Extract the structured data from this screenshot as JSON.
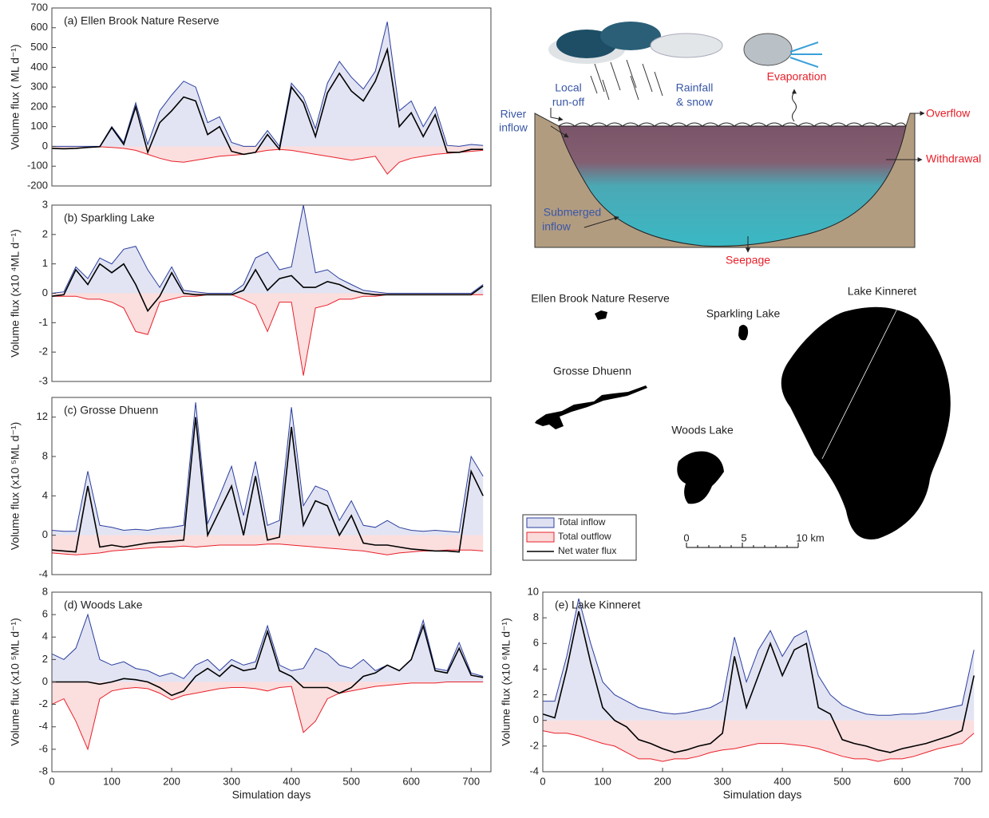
{
  "chart_data": [
    {
      "type": "line",
      "title": "(a) Ellen Brook Nature Reserve",
      "y_label": "Volume flux ( ML d⁻¹)",
      "x": [
        0,
        20,
        40,
        60,
        80,
        100,
        120,
        140,
        160,
        180,
        200,
        220,
        240,
        260,
        280,
        300,
        320,
        340,
        360,
        380,
        400,
        420,
        440,
        460,
        480,
        500,
        520,
        540,
        560,
        580,
        600,
        620,
        640,
        660,
        680,
        700,
        720
      ],
      "xlim": [
        0,
        733
      ],
      "ylim": [
        -200,
        700
      ],
      "yticks": [
        -200,
        -100,
        0,
        100,
        200,
        300,
        400,
        500,
        600,
        700
      ],
      "series": [
        {
          "name": "Total inflow",
          "color": "#2b3f9e",
          "fill": "#dfe1f2",
          "values": [
            0,
            0,
            0,
            0,
            0,
            100,
            20,
            220,
            10,
            180,
            260,
            330,
            300,
            120,
            150,
            20,
            0,
            0,
            80,
            0,
            320,
            250,
            90,
            320,
            430,
            350,
            290,
            380,
            630,
            180,
            230,
            100,
            200,
            5,
            0,
            10,
            5
          ]
        },
        {
          "name": "Total outflow",
          "color": "#e8202a",
          "fill": "#fbdada",
          "values": [
            -10,
            -12,
            -10,
            -5,
            -2,
            -5,
            -10,
            -20,
            -40,
            -60,
            -75,
            -80,
            -70,
            -60,
            -50,
            -45,
            -40,
            -30,
            -20,
            -15,
            -20,
            -30,
            -40,
            -50,
            -60,
            -70,
            -60,
            -50,
            -140,
            -80,
            -60,
            -50,
            -40,
            -35,
            -30,
            -25,
            -20
          ]
        },
        {
          "name": "Net water flux",
          "color": "#000000",
          "values": [
            -10,
            -12,
            -10,
            -5,
            -2,
            95,
            10,
            200,
            -30,
            120,
            180,
            250,
            230,
            60,
            100,
            -25,
            -40,
            -30,
            60,
            -15,
            300,
            220,
            50,
            270,
            370,
            280,
            230,
            330,
            490,
            100,
            170,
            50,
            160,
            -30,
            -30,
            -15,
            -15
          ]
        }
      ]
    },
    {
      "type": "line",
      "title": "(b) Sparkling Lake",
      "y_label": "Volume flux (x10 ⁴ML d⁻¹)",
      "x": [
        0,
        20,
        40,
        60,
        80,
        100,
        120,
        140,
        160,
        180,
        200,
        220,
        240,
        260,
        280,
        300,
        320,
        340,
        360,
        380,
        400,
        420,
        440,
        460,
        480,
        500,
        520,
        540,
        560,
        580,
        600,
        620,
        640,
        660,
        680,
        700,
        720
      ],
      "xlim": [
        0,
        733
      ],
      "ylim": [
        -3,
        3
      ],
      "yticks": [
        -3,
        -2,
        -1,
        0,
        1,
        2,
        3
      ],
      "series": [
        {
          "color": "#2b3f9e",
          "fill": "#dfe1f2",
          "values": [
            0,
            0.05,
            0.9,
            0.5,
            1.2,
            1.0,
            1.5,
            1.6,
            0.8,
            0.2,
            0.9,
            0.1,
            0.05,
            0,
            0,
            0,
            0.3,
            1.2,
            1.4,
            0.8,
            0.9,
            3.0,
            0.7,
            0.8,
            0.5,
            0.3,
            0.1,
            0.05,
            0,
            0,
            0,
            0,
            0,
            0,
            0,
            0,
            0.3
          ]
        },
        {
          "color": "#e8202a",
          "fill": "#fbdada",
          "values": [
            -0.1,
            -0.1,
            -0.1,
            -0.2,
            -0.2,
            -0.3,
            -0.5,
            -1.3,
            -1.4,
            -0.3,
            -0.2,
            -0.1,
            -0.1,
            -0.05,
            -0.05,
            -0.05,
            -0.2,
            -0.4,
            -1.3,
            -0.3,
            -0.3,
            -2.8,
            -0.5,
            -0.4,
            -0.2,
            -0.2,
            -0.1,
            -0.1,
            -0.05,
            -0.05,
            -0.05,
            -0.05,
            -0.05,
            -0.05,
            -0.05,
            -0.05,
            -0.05
          ]
        },
        {
          "color": "#000000",
          "values": [
            -0.1,
            -0.05,
            0.8,
            0.3,
            1.0,
            0.7,
            1.0,
            0.3,
            -0.6,
            -0.1,
            0.7,
            0,
            -0.05,
            -0.05,
            -0.05,
            -0.05,
            0.1,
            0.8,
            0.1,
            0.5,
            0.6,
            0.2,
            0.2,
            0.4,
            0.3,
            0.1,
            0,
            -0.05,
            -0.05,
            -0.05,
            -0.05,
            -0.05,
            -0.05,
            -0.05,
            -0.05,
            -0.05,
            0.25
          ]
        }
      ]
    },
    {
      "type": "line",
      "title": "(c) Grosse Dhuenn",
      "y_label": "Volume flux (x10 ⁵ML d⁻¹)",
      "x": [
        0,
        20,
        40,
        60,
        80,
        100,
        120,
        140,
        160,
        180,
        200,
        220,
        240,
        260,
        280,
        300,
        320,
        340,
        360,
        380,
        400,
        420,
        440,
        460,
        480,
        500,
        520,
        540,
        560,
        580,
        600,
        620,
        640,
        660,
        680,
        700,
        720
      ],
      "xlim": [
        0,
        733
      ],
      "ylim": [
        -4,
        14
      ],
      "yticks": [
        -4,
        0,
        4,
        8,
        12
      ],
      "series": [
        {
          "color": "#2b3f9e",
          "fill": "#dfe1f2",
          "values": [
            0.5,
            0.4,
            0.4,
            6.5,
            1.0,
            0.8,
            0.5,
            0.6,
            0.5,
            0.7,
            0.8,
            1.0,
            13.5,
            1.2,
            4.0,
            7.0,
            2.0,
            7.5,
            1.0,
            1.5,
            13.0,
            3.0,
            5.0,
            4.5,
            1.5,
            3.5,
            1.0,
            0.8,
            1.5,
            0.8,
            0.5,
            0.4,
            0.5,
            0.4,
            0.3,
            8.0,
            6.0
          ]
        },
        {
          "color": "#e8202a",
          "fill": "#fbdada",
          "values": [
            -1.8,
            -1.9,
            -2.0,
            -1.9,
            -1.8,
            -1.6,
            -1.5,
            -1.4,
            -1.3,
            -1.2,
            -1.2,
            -1.1,
            -1.2,
            -1.1,
            -1.0,
            -1.0,
            -1.0,
            -1.0,
            -0.9,
            -0.9,
            -1.0,
            -1.1,
            -1.2,
            -1.3,
            -1.4,
            -1.5,
            -1.6,
            -1.8,
            -2.0,
            -1.8,
            -1.7,
            -1.6,
            -1.6,
            -1.5,
            -1.5,
            -1.5,
            -1.6
          ]
        },
        {
          "color": "#000000",
          "values": [
            -1.5,
            -1.6,
            -1.7,
            5.0,
            -1.2,
            -1.0,
            -1.2,
            -1.0,
            -0.8,
            -0.7,
            -0.6,
            -0.5,
            12.0,
            0.0,
            2.5,
            5.0,
            0.0,
            6.0,
            -0.5,
            -0.2,
            11.0,
            1.0,
            3.5,
            3.0,
            0.0,
            2.0,
            -0.8,
            -1.0,
            -1.0,
            -1.2,
            -1.4,
            -1.5,
            -1.6,
            -1.6,
            -1.7,
            6.5,
            4.0
          ]
        }
      ]
    },
    {
      "type": "line",
      "title": "(d) Woods Lake",
      "y_label": "Volume flux (x10 ⁵ML d⁻¹)",
      "x_label": "Simulation days",
      "x": [
        0,
        20,
        40,
        60,
        80,
        100,
        120,
        140,
        160,
        180,
        200,
        220,
        240,
        260,
        280,
        300,
        320,
        340,
        360,
        380,
        400,
        420,
        440,
        460,
        480,
        500,
        520,
        540,
        560,
        580,
        600,
        620,
        640,
        660,
        680,
        700,
        720
      ],
      "xlim": [
        0,
        733
      ],
      "xticks": [
        0,
        100,
        200,
        300,
        400,
        500,
        600,
        700
      ],
      "ylim": [
        -8,
        8
      ],
      "yticks": [
        -8,
        -6,
        -4,
        -2,
        0,
        2,
        4,
        6,
        8
      ],
      "series": [
        {
          "color": "#2b3f9e",
          "fill": "#dfe1f2",
          "values": [
            2.5,
            2.0,
            3.0,
            6.0,
            2.0,
            1.5,
            1.8,
            1.2,
            1.0,
            0.5,
            0.8,
            0.3,
            1.5,
            2.0,
            1.0,
            2.0,
            1.5,
            1.8,
            5.0,
            1.5,
            1.0,
            1.2,
            3.0,
            2.5,
            1.5,
            1.2,
            2.0,
            1.0,
            1.5,
            1.0,
            2.0,
            5.5,
            1.2,
            1.0,
            3.5,
            0.8,
            0.5
          ]
        },
        {
          "color": "#e8202a",
          "fill": "#fbdada",
          "values": [
            -2.0,
            -1.5,
            -3.5,
            -6.0,
            -1.5,
            -0.8,
            -0.6,
            -0.5,
            -0.6,
            -1.0,
            -1.6,
            -1.2,
            -1.0,
            -0.8,
            -0.6,
            -0.5,
            -0.5,
            -0.6,
            -0.8,
            -0.5,
            -0.4,
            -4.5,
            -3.5,
            -1.5,
            -1.0,
            -0.8,
            -0.6,
            -0.4,
            -0.3,
            -0.2,
            -0.1,
            -0.1,
            -0.1,
            0,
            0,
            0,
            0
          ]
        },
        {
          "color": "#000000",
          "values": [
            0,
            0,
            0,
            0,
            -0.2,
            0,
            0.3,
            0.2,
            0,
            -0.5,
            -1.2,
            -0.8,
            0.5,
            1.2,
            0.5,
            1.5,
            1.0,
            1.2,
            4.5,
            1.0,
            0.5,
            -0.5,
            -0.5,
            -0.5,
            -1.0,
            -0.5,
            0.5,
            0.8,
            1.5,
            1.0,
            2.0,
            5.0,
            1.0,
            0.8,
            3.0,
            0.6,
            0.4
          ]
        }
      ]
    },
    {
      "type": "line",
      "title": "(e) Lake Kinneret",
      "y_label": "Volume flux (x10 ⁶ML d⁻¹)",
      "x_label": "Simulation days",
      "x": [
        0,
        20,
        40,
        60,
        80,
        100,
        120,
        140,
        160,
        180,
        200,
        220,
        240,
        260,
        280,
        300,
        320,
        340,
        360,
        380,
        400,
        420,
        440,
        460,
        480,
        500,
        520,
        540,
        560,
        580,
        600,
        620,
        640,
        660,
        680,
        700,
        720
      ],
      "xlim": [
        0,
        733
      ],
      "xticks": [
        0,
        100,
        200,
        300,
        400,
        500,
        600,
        700
      ],
      "ylim": [
        -4,
        10
      ],
      "yticks": [
        -4,
        -2,
        0,
        2,
        4,
        6,
        8,
        10
      ],
      "series": [
        {
          "color": "#2b3f9e",
          "fill": "#dfe1f2",
          "values": [
            1.5,
            1.5,
            5.0,
            9.5,
            6.0,
            3.0,
            2.0,
            1.5,
            1.0,
            0.8,
            0.6,
            0.5,
            0.6,
            0.8,
            1.0,
            1.5,
            6.5,
            3.0,
            5.5,
            7.0,
            5.0,
            6.5,
            7.0,
            3.5,
            2.0,
            1.2,
            0.8,
            0.5,
            0.4,
            0.4,
            0.5,
            0.5,
            0.6,
            0.8,
            1.0,
            1.2,
            5.5
          ]
        },
        {
          "color": "#e8202a",
          "fill": "#fbdada",
          "values": [
            -0.8,
            -1.0,
            -1.0,
            -1.2,
            -1.5,
            -1.8,
            -2.0,
            -2.5,
            -3.0,
            -3.0,
            -3.2,
            -3.0,
            -3.0,
            -2.8,
            -2.5,
            -2.3,
            -2.2,
            -2.0,
            -1.8,
            -1.8,
            -1.8,
            -1.9,
            -2.0,
            -2.2,
            -2.5,
            -2.8,
            -3.0,
            -3.0,
            -3.2,
            -3.0,
            -3.0,
            -2.8,
            -2.5,
            -2.2,
            -2.0,
            -1.8,
            -1.0
          ]
        },
        {
          "color": "#000000",
          "values": [
            0.5,
            0.2,
            4.0,
            8.5,
            4.5,
            1.0,
            0,
            -0.5,
            -1.5,
            -1.8,
            -2.2,
            -2.5,
            -2.3,
            -2.0,
            -1.8,
            -1.0,
            5.0,
            1.0,
            3.5,
            6.0,
            3.5,
            5.5,
            6.0,
            1.0,
            0.5,
            -1.5,
            -1.8,
            -2.0,
            -2.3,
            -2.5,
            -2.2,
            -2.0,
            -1.8,
            -1.5,
            -1.2,
            -0.8,
            3.5
          ]
        }
      ]
    }
  ],
  "diagram": {
    "local_runoff": [
      "Local",
      "run-off"
    ],
    "rainfall": [
      "Rainfall",
      "& snow"
    ],
    "evaporation": "Evaporation",
    "river_inflow": [
      "River",
      "inflow"
    ],
    "overflow": "Overflow",
    "withdrawal": "Withdrawal",
    "submerged_inflow": [
      "Submerged",
      "inflow"
    ],
    "seepage": "Seepage"
  },
  "map": {
    "lakes": [
      "Ellen Brook Nature Reserve",
      "Sparkling Lake",
      "Lake Kinneret",
      "Grosse Dhuenn",
      "Woods Lake"
    ],
    "scale_labels": [
      "0",
      "5",
      "10 km"
    ]
  }
}
